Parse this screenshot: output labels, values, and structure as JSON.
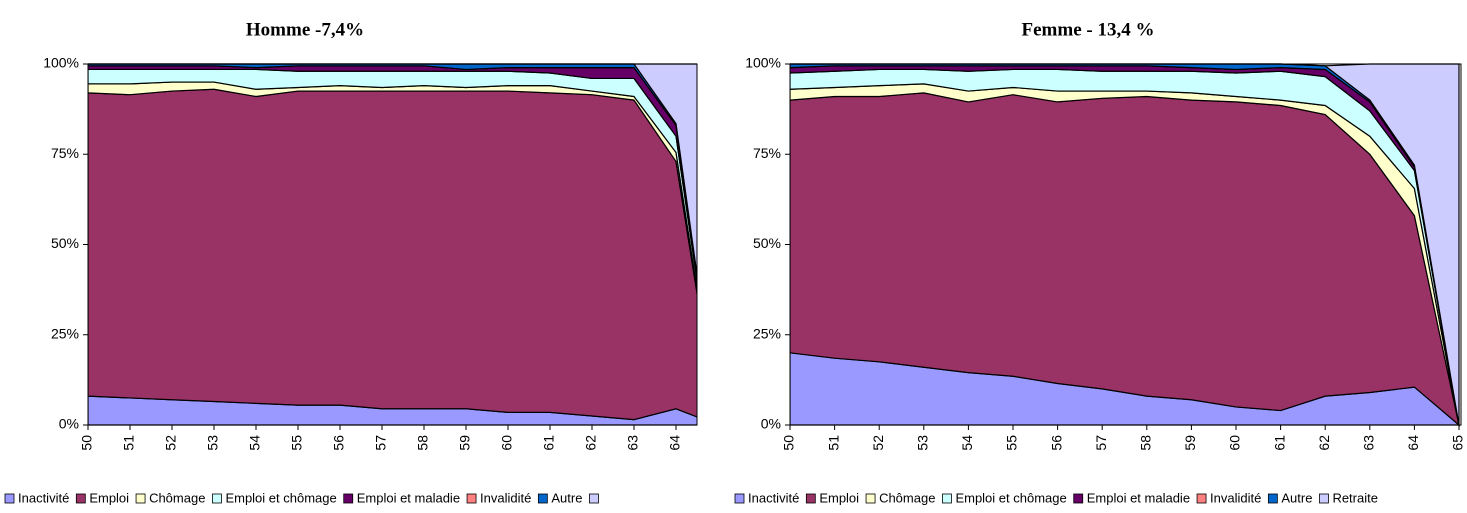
{
  "chart_data": [
    {
      "type": "stacked_area",
      "title": "Homme -7,4%",
      "categories": [
        "50",
        "51",
        "52",
        "53",
        "54",
        "55",
        "56",
        "57",
        "58",
        "59",
        "60",
        "61",
        "62",
        "63",
        "64",
        null
      ],
      "ylim": [
        0,
        100
      ],
      "yticks": [
        {
          "value": 0,
          "label": "0%"
        },
        {
          "value": 25,
          "label": "25%"
        },
        {
          "value": 50,
          "label": "50%"
        },
        {
          "value": 75,
          "label": "75%"
        },
        {
          "value": 100,
          "label": "100%"
        }
      ],
      "series": [
        {
          "name": "Inactivité",
          "color": "#9999ff",
          "values": [
            8,
            7.5,
            7,
            6.5,
            6,
            5.5,
            5.5,
            4.5,
            4.5,
            4.5,
            3.5,
            3.5,
            2.5,
            1.5,
            4.5,
            0
          ]
        },
        {
          "name": "Emploi",
          "color": "#993366",
          "values": [
            84,
            84,
            85.5,
            86.5,
            85,
            87,
            87,
            88,
            88,
            88,
            89,
            88.5,
            89,
            88.5,
            68.5,
            0
          ]
        },
        {
          "name": "Chômage",
          "color": "#ffffcc",
          "values": [
            2.5,
            3,
            2.5,
            2,
            2,
            1,
            1.5,
            1,
            1.5,
            1,
            1.5,
            2,
            1,
            1,
            2.5,
            0
          ]
        },
        {
          "name": "Emploi et chômage",
          "color": "#ccffff",
          "values": [
            4,
            4,
            3.5,
            3.5,
            5.5,
            4.5,
            4,
            4.5,
            4,
            4.5,
            4,
            3.5,
            3.5,
            5,
            4.5,
            0
          ]
        },
        {
          "name": "Emploi et maladie",
          "color": "#660066",
          "values": [
            1,
            1,
            1,
            1,
            0.5,
            1.5,
            1.5,
            1.5,
            1.5,
            0.5,
            1,
            1.5,
            3,
            3,
            3,
            0
          ]
        },
        {
          "name": "Invalidité",
          "color": "#ff8080",
          "values": [
            0,
            0,
            0,
            0,
            0,
            0,
            0,
            0,
            0,
            0,
            0,
            0,
            0,
            0,
            0,
            0
          ]
        },
        {
          "name": "Autre",
          "color": "#0066cc",
          "values": [
            0.5,
            0.5,
            0.5,
            0.5,
            1,
            0.5,
            0.5,
            0.5,
            0.5,
            1.5,
            1,
            1,
            1,
            1,
            0.5,
            0
          ]
        },
        {
          "name": null,
          "color": "#ccccff",
          "values": [
            0,
            0,
            0,
            0,
            0,
            0,
            0,
            0,
            0,
            0,
            0,
            0,
            0,
            0,
            16.5,
            100
          ]
        }
      ]
    },
    {
      "type": "stacked_area",
      "title": "Femme - 13,4 %",
      "categories": [
        "50",
        "51",
        "52",
        "53",
        "54",
        "55",
        "56",
        "57",
        "58",
        "59",
        "60",
        "61",
        "62",
        "63",
        "64",
        "65"
      ],
      "ylim": [
        0,
        100
      ],
      "yticks": [
        {
          "value": 0,
          "label": "0%"
        },
        {
          "value": 25,
          "label": "25%"
        },
        {
          "value": 50,
          "label": "50%"
        },
        {
          "value": 75,
          "label": "75%"
        },
        {
          "value": 100,
          "label": "100%"
        }
      ],
      "series": [
        {
          "name": "Inactivité",
          "color": "#9999ff",
          "values": [
            20,
            18.5,
            17.5,
            16,
            14.5,
            13.5,
            11.5,
            10,
            8,
            7,
            5,
            4,
            8,
            9,
            10.5,
            0
          ]
        },
        {
          "name": "Emploi",
          "color": "#993366",
          "values": [
            70,
            72.5,
            73.5,
            76,
            75,
            78,
            78,
            80.5,
            83,
            83,
            84.5,
            84.5,
            78,
            66,
            47.5,
            0
          ]
        },
        {
          "name": "Chômage",
          "color": "#ffffcc",
          "values": [
            3,
            2.5,
            3,
            2.5,
            3,
            2,
            3,
            2,
            1.5,
            2,
            1.5,
            1.5,
            2.5,
            5,
            7.5,
            0
          ]
        },
        {
          "name": "Emploi et chômage",
          "color": "#ccffff",
          "values": [
            4.5,
            4.5,
            4.5,
            4,
            5.5,
            5,
            6,
            5.5,
            5.5,
            6,
            6.5,
            8,
            8,
            7,
            5,
            0
          ]
        },
        {
          "name": "Emploi et maladie",
          "color": "#660066",
          "values": [
            1.5,
            1.5,
            1,
            1,
            1.5,
            1,
            1,
            1.5,
            1.5,
            1,
            1,
            1,
            2,
            2.5,
            1,
            0
          ]
        },
        {
          "name": "Invalidité",
          "color": "#ff8080",
          "values": [
            0,
            0,
            0,
            0,
            0,
            0,
            0,
            0,
            0,
            0,
            0,
            0,
            0,
            0,
            0,
            0
          ]
        },
        {
          "name": "Autre",
          "color": "#0066cc",
          "values": [
            1,
            0.5,
            0.5,
            0.5,
            0.5,
            0.5,
            0.5,
            0.5,
            0.5,
            1,
            1.5,
            1,
            1,
            0.5,
            0.5,
            0
          ]
        },
        {
          "name": "Retraite",
          "color": "#ccccff",
          "values": [
            0,
            0,
            0,
            0,
            0,
            0,
            0,
            0,
            0,
            0,
            0,
            0,
            0,
            10,
            28,
            100
          ]
        }
      ]
    }
  ]
}
